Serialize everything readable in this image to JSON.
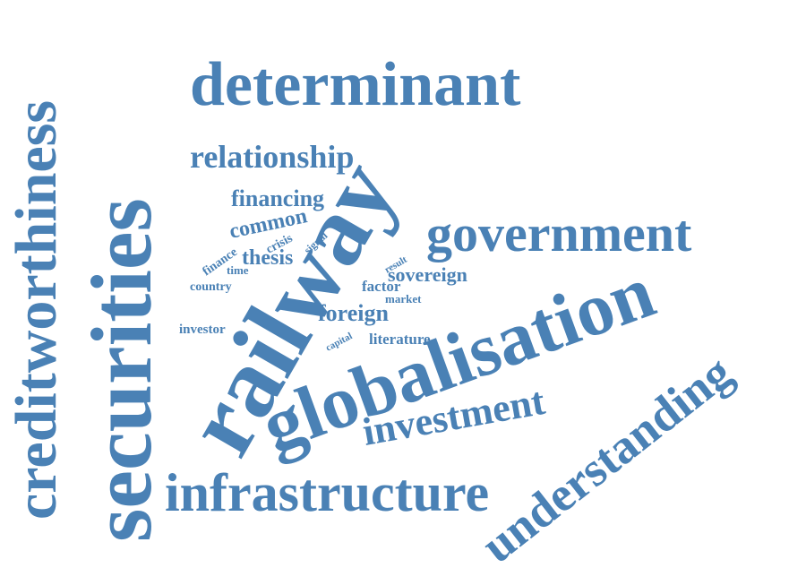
{
  "word_cloud": {
    "color": "#4a81b5",
    "words": {
      "railway": "railway",
      "securities": "securities",
      "globalisation": "globalisation",
      "creditworthiness": "creditworthiness",
      "determinant": "determinant",
      "government": "government",
      "infrastructure": "infrastructure",
      "understanding": "understanding",
      "investment": "investment",
      "relationship": "relationship",
      "financing": "financing",
      "common": "common",
      "thesis": "thesis",
      "foreign": "foreign",
      "sovereign": "sovereign",
      "literature": "literature",
      "factor": "factor",
      "market": "market",
      "crisis": "crisis",
      "signal": "signal",
      "finance": "finance",
      "time": "time",
      "country": "country",
      "investor": "investor",
      "capital": "capital",
      "result": "result"
    }
  }
}
